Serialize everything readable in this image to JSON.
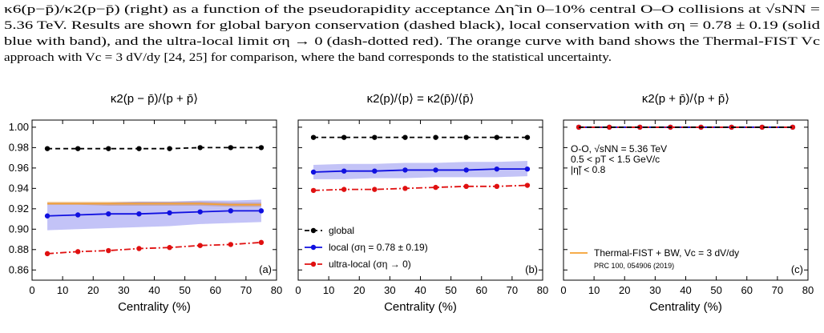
{
  "caption": [
    "κ6(p−p̄)/κ2(p−p̄) (right) as a function of the pseudorapidity acceptance Δη̃ in 0–10% central O–O collisions at √sNN =",
    "5.36 TeV. Results are shown for global baryon conservation (dashed black), local conservation with ση = 0.78 ± 0.19 (solid",
    "blue with band), and the ultra-local limit ση → 0 (dash-dotted red). The orange curve with band shows the Thermal-FIST Vc",
    "approach with Vc = 3 dV/dy [24, 25] for comparison, where the band corresponds to the statistical uncertainty."
  ],
  "chart_data": [
    {
      "type": "line",
      "title": "κ2(p − p̄)/⟨p + p̄⟩",
      "xlabel": "Centrality (%)",
      "panel_label": "(a)",
      "xlim": [
        0,
        80
      ],
      "xticks": [
        0,
        10,
        20,
        30,
        40,
        50,
        60,
        70,
        80
      ],
      "ylim": [
        0.85,
        1.007
      ],
      "yticks": [
        0.86,
        0.88,
        {
          "value": 0.9,
          "label": "0.90"
        },
        0.92,
        0.94,
        0.96,
        0.98,
        {
          "value": 1,
          "label": "1.00"
        }
      ],
      "x": [
        5,
        15,
        25,
        35,
        45,
        55,
        65,
        75
      ],
      "series": [
        {
          "color": "#f5a030",
          "dash": "solid",
          "markers": false,
          "values": [
            0.925,
            0.925,
            0.925,
            0.925,
            0.925,
            0.925,
            0.924,
            0.924
          ],
          "lower": [
            0.924,
            0.924,
            0.923,
            0.923,
            0.923,
            0.923,
            0.922,
            0.922
          ],
          "upper": [
            0.927,
            0.927,
            0.927,
            0.927,
            0.927,
            0.927,
            0.926,
            0.926
          ]
        },
        {
          "color": "#000000",
          "dash": "dashed",
          "markers": true,
          "values": [
            0.979,
            0.979,
            0.979,
            0.979,
            0.979,
            0.98,
            0.98,
            0.98
          ]
        },
        {
          "color": "#1010e0",
          "dash": "solid",
          "markers": true,
          "values": [
            0.913,
            0.914,
            0.915,
            0.915,
            0.916,
            0.917,
            0.918,
            0.918
          ],
          "lower": [
            0.899,
            0.9,
            0.901,
            0.902,
            0.903,
            0.905,
            0.906,
            0.907
          ],
          "upper": [
            0.926,
            0.926,
            0.926,
            0.927,
            0.927,
            0.928,
            0.928,
            0.929
          ]
        },
        {
          "color": "#e01010",
          "dash": "dashdot",
          "markers": true,
          "values": [
            0.876,
            0.878,
            0.879,
            0.881,
            0.882,
            0.884,
            0.885,
            0.887
          ]
        }
      ]
    },
    {
      "type": "line",
      "title": "κ2(p)/⟨p⟩ = κ2(p̄)/⟨p̄⟩",
      "xlabel": "Centrality (%)",
      "panel_label": "(b)",
      "xlim": [
        0,
        80
      ],
      "xticks": [
        0,
        10,
        20,
        30,
        40,
        50,
        60,
        70,
        80
      ],
      "x": [
        5,
        15,
        25,
        35,
        45,
        55,
        65,
        75
      ],
      "series": [
        {
          "name": "global",
          "color": "#000000",
          "dash": "dashed",
          "markers": true,
          "values": [
            0.99,
            0.99,
            0.99,
            0.99,
            0.99,
            0.99,
            0.99,
            0.99
          ]
        },
        {
          "name": "local (ση = 0.78 ± 0.19)",
          "color": "#1010e0",
          "dash": "solid",
          "markers": true,
          "values": [
            0.956,
            0.957,
            0.957,
            0.958,
            0.958,
            0.958,
            0.959,
            0.959
          ],
          "lower": [
            0.949,
            0.949,
            0.95,
            0.95,
            0.951,
            0.951,
            0.951,
            0.952
          ],
          "upper": [
            0.963,
            0.964,
            0.964,
            0.965,
            0.965,
            0.966,
            0.966,
            0.967
          ]
        },
        {
          "name": "ultra-local (ση → 0)",
          "color": "#e01010",
          "dash": "dashdot",
          "markers": true,
          "values": [
            0.938,
            0.939,
            0.939,
            0.94,
            0.941,
            0.942,
            0.942,
            0.943
          ]
        }
      ]
    },
    {
      "type": "line",
      "title": "κ2(p + p̄)/⟨p + p̄⟩",
      "xlabel": "Centrality (%)",
      "panel_label": "(c)",
      "xlim": [
        0,
        80
      ],
      "xticks": [
        0,
        10,
        20,
        30,
        40,
        50,
        60,
        70,
        80
      ],
      "x": [
        5,
        15,
        25,
        35,
        45,
        55,
        65,
        75
      ],
      "annotations": [
        "O-O, √sNN = 5.36 TeV",
        "0.5 < pT < 1.5 GeV/c",
        "|η̃| < 0.8"
      ],
      "reference": "PRC 100, 054906 (2019)",
      "series": [
        {
          "name": "Thermal-FIST + BW, Vc = 3 dV/dy",
          "color": "#f5a030",
          "dash": "solid",
          "markers": false,
          "values": [
            1,
            1,
            1,
            1,
            1,
            1,
            1,
            1
          ]
        },
        {
          "color": "#1010e0",
          "dash": "solid",
          "markers": true,
          "values": [
            1,
            1,
            1,
            1,
            1,
            1,
            1,
            1
          ]
        },
        {
          "color": "#e01010",
          "dash": "dashdot",
          "markers": true,
          "values": [
            1,
            1,
            1,
            1,
            1,
            1,
            1,
            1
          ]
        },
        {
          "color": "#000000",
          "dash": "dashed",
          "markers": false,
          "values": [
            1,
            1,
            1,
            1,
            1,
            1,
            1,
            1
          ]
        }
      ]
    }
  ]
}
